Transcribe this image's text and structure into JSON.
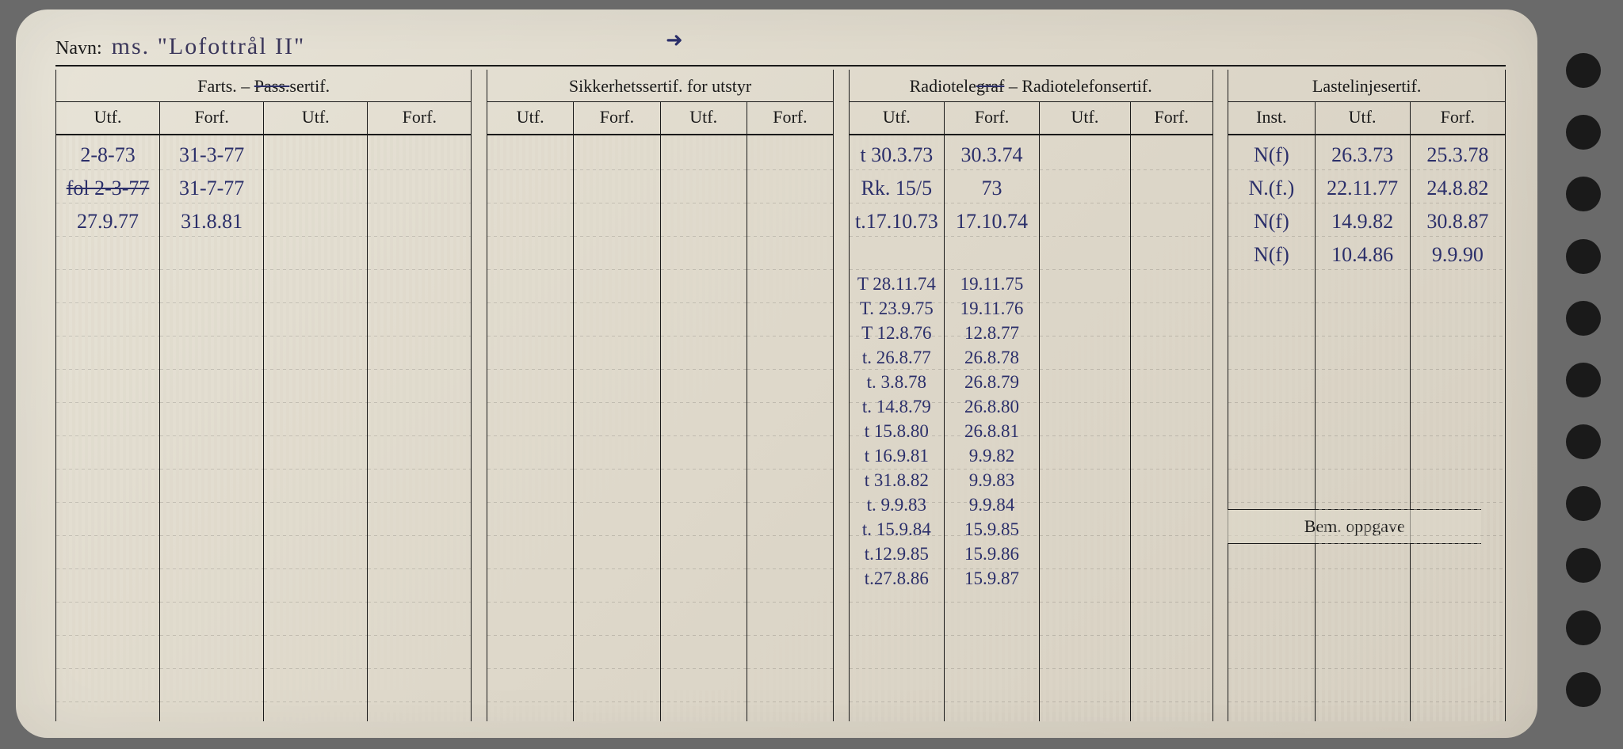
{
  "name_label": "Navn:",
  "name_value": "ms. \"Lofottrål II\"",
  "arrow_glyph": "➜",
  "headers": {
    "group1": "Farts. – Pass.sertif.",
    "group1_strike": "Pass.",
    "group2": "Sikkerhetssertif. for utstyr",
    "group3_pre": "Radiotele",
    "group3_strike": "graf",
    "group3_post": " – Radiotelefonsertif.",
    "group4": "Lastelinjesertif.",
    "utf": "Utf.",
    "forf": "Forf.",
    "inst": "Inst."
  },
  "bem_label": "Bem. oppgave",
  "farts": {
    "utf1": [
      "2-8-73",
      "fol 2-3-77",
      "27.9.77"
    ],
    "forf1": [
      "31-3-77",
      "31-7-77",
      "31.8.81"
    ]
  },
  "radio": {
    "utf1": [
      "t 30.3.73",
      "Rk. 15/5",
      "t.17.10.73",
      "",
      "T 28.11.74",
      "T. 23.9.75",
      "T 12.8.76",
      "t. 26.8.77",
      "t. 3.8.78",
      "t. 14.8.79",
      "t 15.8.80",
      "t 16.9.81",
      "t 31.8.82",
      "t. 9.9.83",
      "t. 15.9.84",
      "t.12.9.85",
      "t.27.8.86"
    ],
    "forf1": [
      "30.3.74",
      "73",
      "17.10.74",
      "",
      "19.11.75",
      "19.11.76",
      "12.8.77",
      "26.8.78",
      "26.8.79",
      "26.8.80",
      "26.8.81",
      "9.9.82",
      "9.9.83",
      "9.9.84",
      "15.9.85",
      "15.9.86",
      "15.9.87"
    ]
  },
  "laste": {
    "inst": [
      "N(f)",
      "N.(f.)",
      "N(f)",
      "N(f)"
    ],
    "utf": [
      "26.3.73",
      "22.11.77",
      "14.9.82",
      "10.4.86"
    ],
    "forf": [
      "25.3.78",
      "24.8.82",
      "30.8.87",
      "9.9.90"
    ]
  },
  "colors": {
    "ink": "#2b2f6a",
    "paper": "#ded8ca",
    "rule": "#1a1a1a"
  }
}
